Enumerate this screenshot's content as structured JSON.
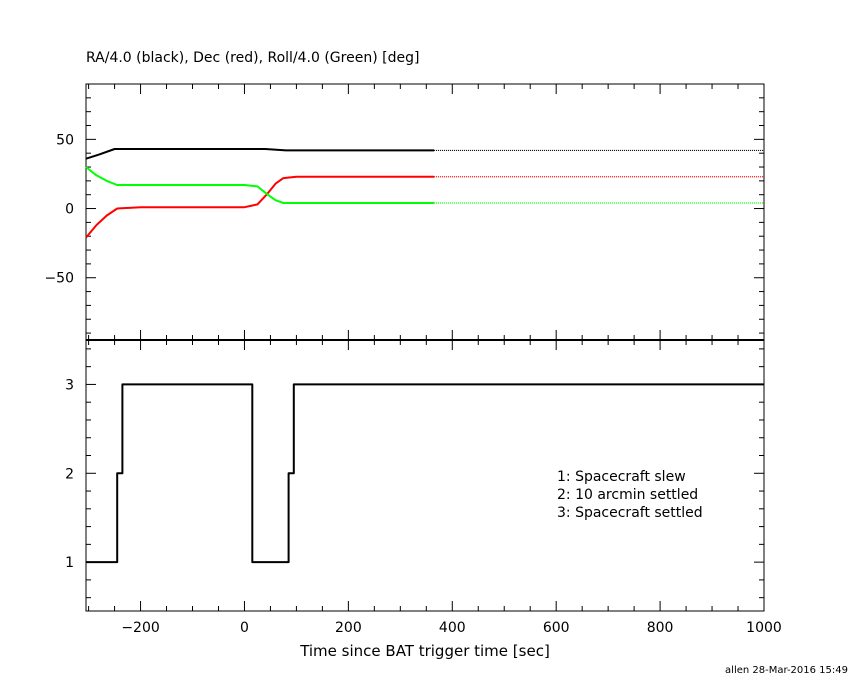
{
  "chart_data": [
    {
      "type": "line",
      "title": "RA/4.0 (black), Dec (red), Roll/4.0 (Green) [deg]",
      "xlim": [
        -305,
        1000
      ],
      "ylim": [
        -95,
        90
      ],
      "yticks": [
        -50,
        0,
        50
      ],
      "grid": false,
      "series": [
        {
          "color": "#000000",
          "x": [
            -305,
            -280,
            -250,
            -150,
            0,
            40,
            80,
            200,
            365
          ],
          "y": [
            36,
            39,
            43,
            43,
            43,
            43,
            42,
            42,
            42
          ],
          "dotted_from": 365,
          "dotted_to": 1000,
          "dotted_y": 42
        },
        {
          "color": "#ff0000",
          "x": [
            -305,
            -285,
            -265,
            -245,
            -200,
            -100,
            0,
            25,
            45,
            60,
            75,
            100,
            200,
            365
          ],
          "y": [
            -21,
            -12,
            -5,
            0,
            1,
            1,
            1,
            3,
            11,
            18,
            22,
            23,
            23,
            23
          ],
          "dotted_from": 365,
          "dotted_to": 1000,
          "dotted_y": 23
        },
        {
          "color": "#00ff00",
          "x": [
            -305,
            -285,
            -265,
            -245,
            -200,
            -100,
            0,
            25,
            45,
            60,
            75,
            100,
            200,
            365
          ],
          "y": [
            30,
            24,
            20,
            17,
            17,
            17,
            17,
            16,
            10,
            6,
            4,
            4,
            4,
            4
          ],
          "dotted_from": 365,
          "dotted_to": 1000,
          "dotted_y": 4
        }
      ]
    },
    {
      "type": "line",
      "step": true,
      "xlabel": "Time since BAT trigger time [sec]",
      "xlim": [
        -305,
        1000
      ],
      "ylim": [
        0.45,
        3.5
      ],
      "yticks": [
        1,
        2,
        3
      ],
      "xticks": [
        -200,
        0,
        200,
        400,
        600,
        800,
        1000
      ],
      "grid": false,
      "series": [
        {
          "color": "#000000",
          "x": [
            -305,
            -245,
            -245,
            -235,
            -235,
            15,
            15,
            85,
            85,
            95,
            95,
            1000
          ],
          "y": [
            1,
            1,
            2,
            2,
            3,
            3,
            1,
            1,
            2,
            2,
            3,
            3
          ]
        }
      ],
      "legend": [
        "1: Spacecraft slew",
        "2: 10 arcmin settled",
        "3: Spacecraft settled"
      ]
    }
  ],
  "footer": "allen 28-Mar-2016 15:49"
}
